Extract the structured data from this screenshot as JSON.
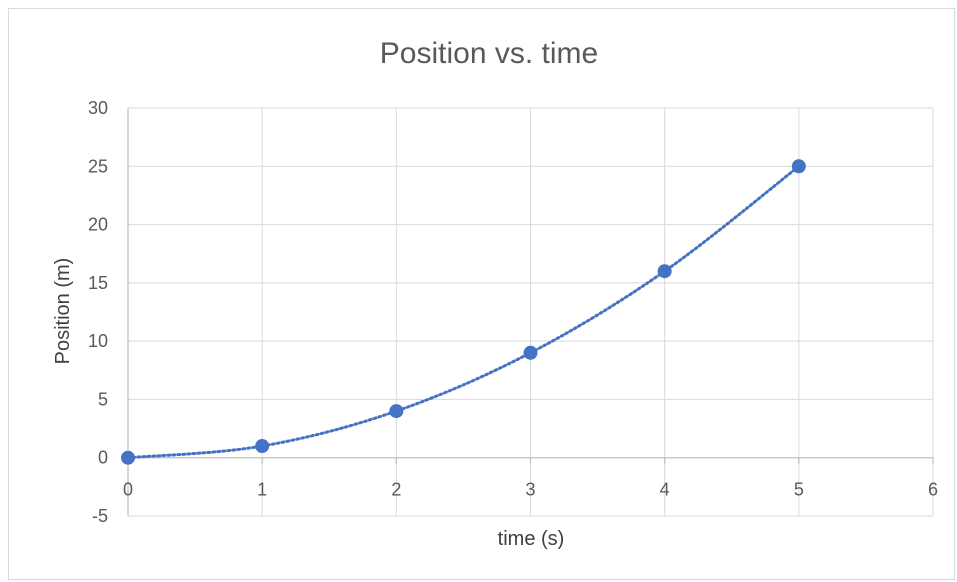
{
  "chart_data": {
    "type": "scatter",
    "title": "Position vs. time",
    "xlabel": "time (s)",
    "ylabel": "Position (m)",
    "xlim": [
      0,
      6
    ],
    "ylim": [
      -5,
      30
    ],
    "x_ticks": [
      "0",
      "1",
      "2",
      "3",
      "4",
      "5",
      "6"
    ],
    "y_ticks": [
      "30",
      "25",
      "20",
      "15",
      "10",
      "5",
      "0",
      "-5"
    ],
    "grid": true,
    "legend": "none",
    "series": [
      {
        "x": [
          0,
          1,
          2,
          3,
          4,
          5
        ],
        "y": [
          0,
          1,
          4,
          9,
          16,
          25
        ],
        "color": "#4472C4",
        "line_style": "dotted-smooth"
      }
    ]
  }
}
